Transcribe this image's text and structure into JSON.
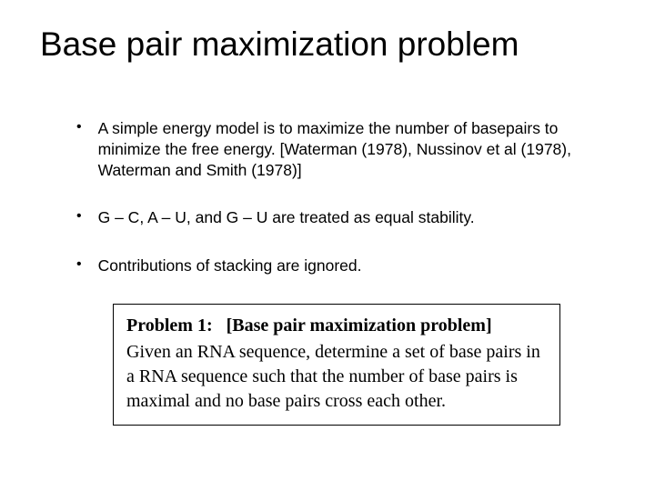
{
  "title": "Base pair maximization problem",
  "bullets": [
    "A simple energy model is to maximize the number of basepairs to minimize the free energy. [Waterman (1978), Nussinov et al (1978), Waterman and Smith (1978)]",
    "G – C,  A – U,  and G – U are treated as equal stability.",
    "Contributions of stacking are ignored."
  ],
  "problem": {
    "label": "Problem 1:",
    "bracket": "[Base pair maximization problem]",
    "body": "Given an RNA sequence, determine a set of base pairs in a RNA sequence such that the number of base pairs is maximal and no base pairs cross each other."
  },
  "colors": {
    "background": "#ffffff",
    "text": "#000000",
    "box_border": "#000000"
  },
  "typography": {
    "title_fontsize": 37,
    "bullet_fontsize": 17.5,
    "problem_fontsize": 20,
    "title_family": "Arial",
    "problem_family": "Times New Roman"
  }
}
